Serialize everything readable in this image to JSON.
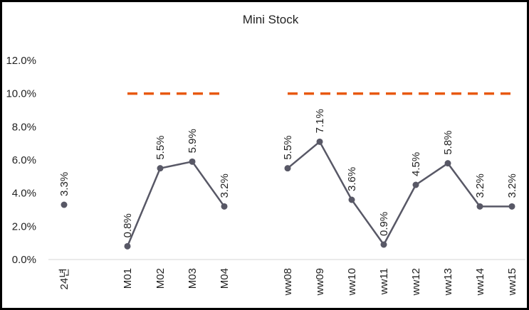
{
  "chart_data": {
    "type": "line",
    "title": "Mini Stock",
    "xlabel": "",
    "ylabel": "",
    "ylim": [
      0,
      12
    ],
    "y_ticks": [
      "0.0%",
      "2.0%",
      "4.0%",
      "6.0%",
      "8.0%",
      "10.0%",
      "12.0%"
    ],
    "categories": [
      "24년",
      "M01",
      "M02",
      "M03",
      "M04",
      "ww08",
      "ww09",
      "ww10",
      "ww11",
      "ww12",
      "ww13",
      "ww14",
      "ww15"
    ],
    "series": [
      {
        "color": "#585866",
        "values": [
          3.3,
          0.8,
          5.5,
          5.9,
          3.2,
          5.5,
          7.1,
          3.6,
          0.9,
          4.5,
          5.8,
          3.2,
          3.2
        ],
        "labels": [
          "3.3%",
          "0.8%",
          "5.5%",
          "5.9%",
          "3.2%",
          "5.5%",
          "7.1%",
          "3.6%",
          "0.9%",
          "4.5%",
          "5.8%",
          "3.2%",
          "3.2%"
        ],
        "segments": [
          [
            1,
            4
          ],
          [
            5,
            12
          ]
        ]
      }
    ],
    "target": {
      "value": 10,
      "color": "#E8580F",
      "segments": [
        [
          1,
          4
        ],
        [
          5,
          12
        ]
      ]
    },
    "legend": "none",
    "grid": false
  }
}
